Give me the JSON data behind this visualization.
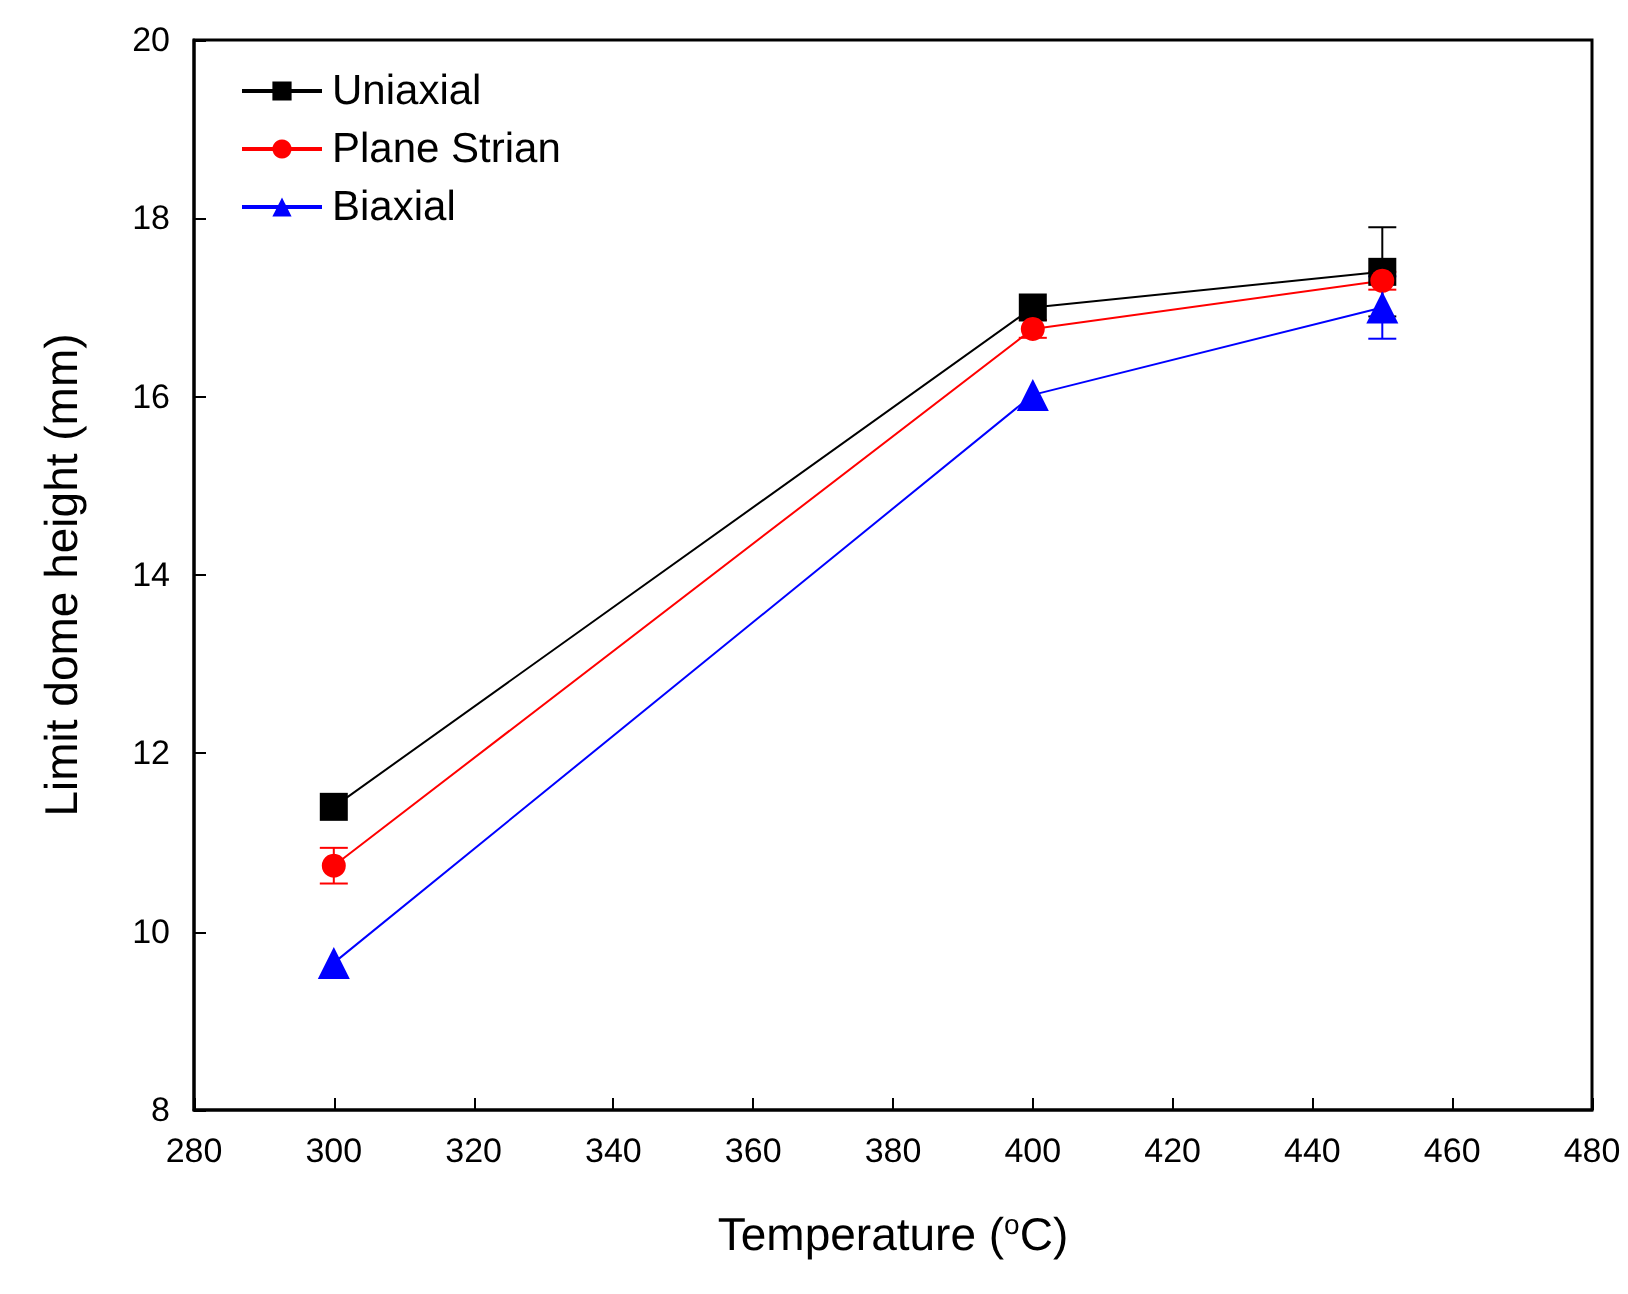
{
  "chart_data": {
    "type": "line",
    "xlabel": "Temperature ($^{o}$C)",
    "ylabel": "Limit dome height (mm)",
    "x": [
      300,
      400,
      450
    ],
    "series": [
      {
        "name": "Uniaxial",
        "color": "#000000",
        "marker": "square",
        "values": [
          11.4,
          17.0,
          17.4
        ],
        "errors": [
          null,
          null,
          0.5
        ]
      },
      {
        "name": "Plane Strian",
        "color": "#ff0000",
        "marker": "circle",
        "values": [
          10.74,
          16.76,
          17.3
        ],
        "errors": [
          0.2,
          0.1,
          0.1
        ]
      },
      {
        "name": "Biaxial",
        "color": "#0000ff",
        "marker": "triangle",
        "values": [
          9.65,
          16.02,
          17.0
        ],
        "errors": [
          null,
          null,
          0.35
        ]
      }
    ],
    "xlim": [
      280,
      480
    ],
    "xticks": [
      280,
      300,
      320,
      340,
      360,
      380,
      400,
      420,
      440,
      460,
      480
    ],
    "ylim": [
      8,
      20
    ],
    "yticks": [
      8,
      10,
      12,
      14,
      16,
      18,
      20
    ],
    "legend": "top left",
    "grid": false,
    "line_style": "solid"
  }
}
